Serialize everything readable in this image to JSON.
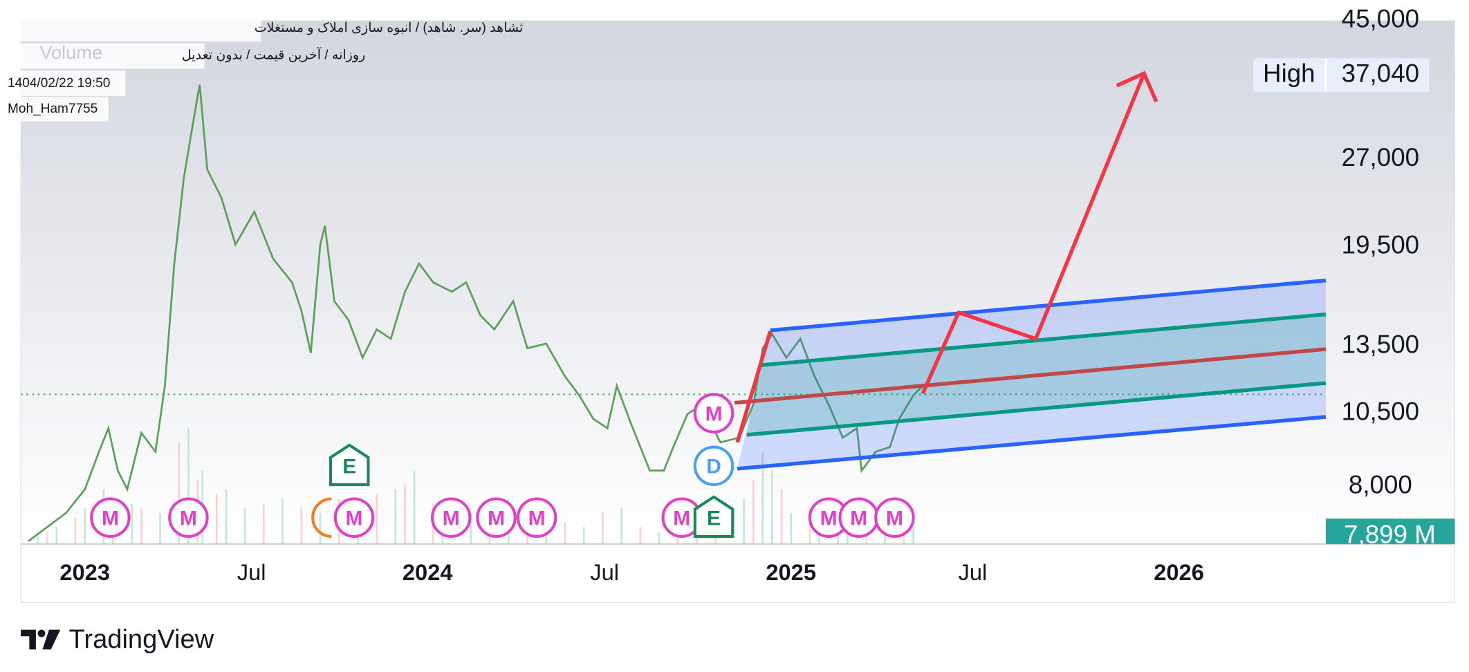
{
  "header": {
    "symbol": "ثشاهد (سر. شاهد) / انبوه سازی املاک و مستغلات",
    "settings": "روزانه / آخرین قیمت / بدون تعدیل",
    "datetime": "1404/02/22 19:50",
    "author": "Moh_Ham7755",
    "volume_label": "Volume"
  },
  "price_axis": [
    "45,000",
    "27,000",
    "19,500",
    "13,500",
    "10,500",
    "8,000"
  ],
  "time_axis": [
    "2023",
    "Jul",
    "2024",
    "Jul",
    "2025",
    "Jul",
    "2026"
  ],
  "high": {
    "label": "High",
    "value": "37,040"
  },
  "volume": "7,899 M",
  "markers": [
    "M",
    "M",
    "M",
    "M",
    "M",
    "M",
    "M",
    "M",
    "M",
    "M",
    "M",
    "D",
    "E",
    "E"
  ],
  "logo": "TradingView"
}
